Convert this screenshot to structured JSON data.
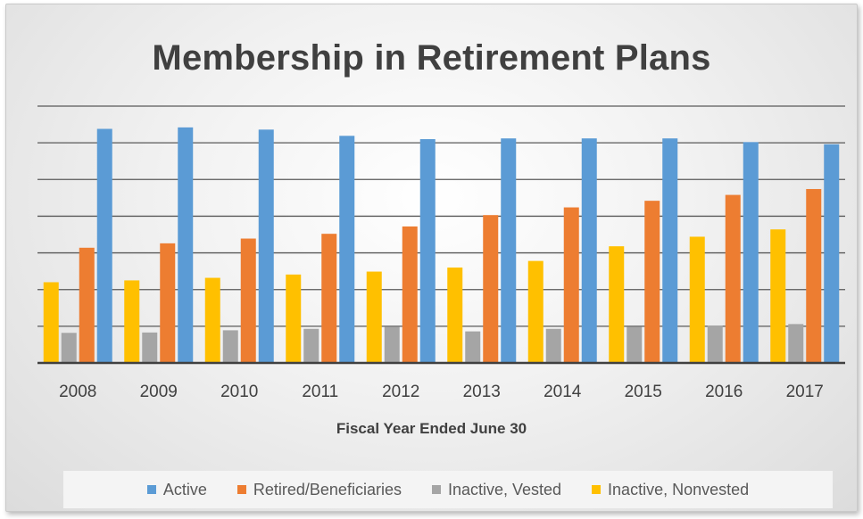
{
  "chart_data": {
    "type": "bar",
    "title": "Membership in Retirement Plans",
    "xlabel": "Fiscal Year Ended June 30",
    "ylabel": "",
    "categories": [
      "2008",
      "2009",
      "2010",
      "2011",
      "2012",
      "2013",
      "2014",
      "2015",
      "2016",
      "2017"
    ],
    "series": [
      {
        "name": "Inactive, Nonvested",
        "color": "#FFC000",
        "values": [
          22,
          22.5,
          23.2,
          24.1,
          24.9,
          26,
          27.8,
          31.8,
          34.4,
          36.4
        ]
      },
      {
        "name": "Inactive, Vested",
        "color": "#A5A5A5",
        "values": [
          8.2,
          8.3,
          8.9,
          9.3,
          9.8,
          8.6,
          9.3,
          9.8,
          10.1,
          10.6
        ]
      },
      {
        "name": "Retired/Beneficiaries",
        "color": "#ED7D31",
        "values": [
          31.4,
          32.6,
          33.9,
          35.2,
          37.2,
          40.3,
          42.4,
          44.2,
          45.8,
          47.4
        ]
      },
      {
        "name": "Active",
        "color": "#5B9BD5",
        "values": [
          63.8,
          64.2,
          63.6,
          61.9,
          61,
          61.2,
          61.2,
          61.2,
          60.2,
          59.6
        ]
      }
    ],
    "legend_order": [
      "Active",
      "Retired/Beneficiaries",
      "Inactive, Vested",
      "Inactive, Nonvested"
    ],
    "ylim": [
      0,
      70
    ],
    "ytick_step": 10,
    "y_tick_labels_shown": false,
    "grid": true,
    "legend_position": "bottom"
  }
}
